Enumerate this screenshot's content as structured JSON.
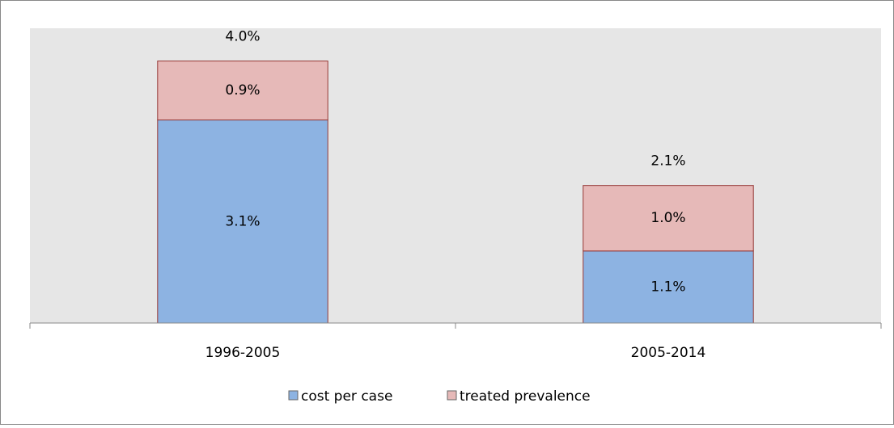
{
  "chart_data": {
    "type": "stacked_bar",
    "categories": [
      "1996-2005",
      "2005-2014"
    ],
    "series": [
      {
        "name": "cost per case",
        "color": "#8db3e2",
        "values": [
          3.1,
          1.1
        ],
        "value_labels": [
          "3.1%",
          "1.1%"
        ]
      },
      {
        "name": "treated prevalence",
        "color": "#e6b9b8",
        "values": [
          0.9,
          1.0
        ],
        "value_labels": [
          "0.9%",
          "1.0%"
        ]
      }
    ],
    "totals": [
      4.0,
      2.1
    ],
    "total_labels": [
      "4.0%",
      "2.1%"
    ],
    "ylim": [
      0,
      4.5
    ],
    "legend": "bottom"
  }
}
